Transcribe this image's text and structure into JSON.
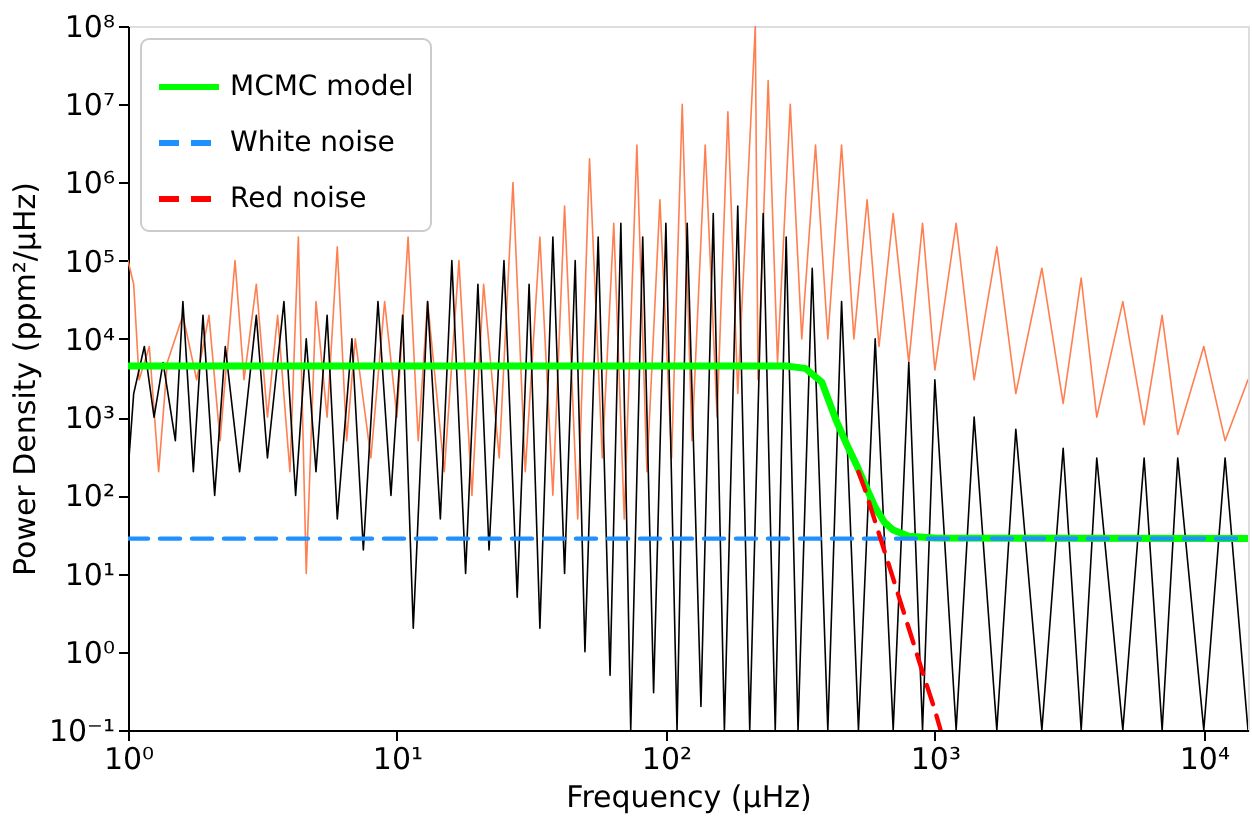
{
  "chart_data": {
    "type": "line",
    "xlabel": "Frequency (μHz)",
    "ylabel": "Power Density (ppm²/μHz)",
    "log": "xy",
    "grid": false,
    "legend": "top left",
    "xlim": [
      1,
      14600
    ],
    "ylim": [
      0.1,
      100000000
    ],
    "xticks": [
      {
        "value": 1,
        "label": "10⁰"
      },
      {
        "value": 10,
        "label": "10¹"
      },
      {
        "value": 100,
        "label": "10²"
      },
      {
        "value": 1000,
        "label": "10³"
      },
      {
        "value": 10000,
        "label": "10⁴"
      }
    ],
    "yticks": [
      {
        "value": 0.1,
        "label": "10⁻¹"
      },
      {
        "value": 1,
        "label": "10⁰"
      },
      {
        "value": 10,
        "label": "10¹"
      },
      {
        "value": 100,
        "label": "10²"
      },
      {
        "value": 1000,
        "label": "10³"
      },
      {
        "value": 10000,
        "label": "10⁴"
      },
      {
        "value": 100000,
        "label": "10⁵"
      },
      {
        "value": 1000000,
        "label": "10⁶"
      },
      {
        "value": 10000000,
        "label": "10⁷"
      },
      {
        "value": 100000000,
        "label": "10⁸"
      }
    ],
    "series": [
      {
        "color": "#ff7f50",
        "line_style": "solid",
        "x": [
          1,
          1.05,
          1.1,
          1.2,
          1.3,
          1.4,
          1.6,
          1.8,
          2,
          2.2,
          2.5,
          2.7,
          3,
          3.3,
          3.6,
          4,
          4.3,
          4.6,
          5,
          5.5,
          6,
          6.5,
          7,
          8,
          9,
          10,
          11,
          12,
          13,
          15,
          17,
          19,
          21,
          24,
          27,
          30,
          34,
          38,
          42,
          47,
          52,
          58,
          64,
          70,
          78,
          85,
          95,
          105,
          115,
          125,
          140,
          155,
          170,
          185,
          215,
          220,
          240,
          260,
          290,
          320,
          360,
          400,
          450,
          500,
          560,
          620,
          700,
          800,
          900,
          1000,
          1200,
          1400,
          1700,
          2000,
          2500,
          3000,
          3500,
          4000,
          5000,
          6000,
          7000,
          8000,
          10000,
          12000,
          14600
        ],
        "values": [
          100000,
          50000,
          3000,
          8000,
          200,
          5000,
          20000,
          3000,
          20000,
          500,
          100000,
          3000,
          50000,
          1000,
          20000,
          200,
          200000,
          10,
          30000,
          1000,
          150000,
          500,
          10000,
          300,
          30000,
          1000,
          200000,
          500,
          30000,
          200,
          100000,
          100,
          50000,
          300,
          1000000,
          200,
          200000,
          100,
          500000,
          50,
          2000000,
          300,
          300000,
          50,
          3000000,
          200,
          600000,
          300,
          10000000,
          500,
          3000000,
          1000,
          8000000,
          2000,
          100000000,
          3000,
          20000000,
          5000,
          10000000,
          10000,
          3000000,
          10000,
          3000000,
          10000,
          600000,
          8000,
          400000,
          5000,
          300000,
          4000,
          300000,
          3000,
          150000,
          2000,
          80000,
          1500,
          60000,
          1000,
          30000,
          800,
          20000,
          600,
          8000,
          500,
          3000
        ]
      },
      {
        "color": "#000000",
        "line_style": "solid",
        "x": [
          1,
          1.05,
          1.15,
          1.25,
          1.35,
          1.5,
          1.6,
          1.75,
          1.9,
          2.1,
          2.3,
          2.6,
          3,
          3.3,
          3.8,
          4.2,
          4.6,
          5,
          5.5,
          6,
          6.8,
          7.5,
          8.5,
          9.5,
          10.5,
          11.5,
          13,
          14.5,
          16,
          18,
          20,
          22,
          25,
          28,
          31,
          34,
          38,
          42,
          46,
          50,
          56,
          62,
          68,
          74,
          82,
          90,
          100,
          110,
          120,
          135,
          150,
          165,
          185,
          205,
          230,
          255,
          280,
          310,
          350,
          400,
          450,
          520,
          600,
          700,
          800,
          900,
          1000,
          1200,
          1400,
          1700,
          2000,
          2500,
          3000,
          3500,
          4000,
          5000,
          6000,
          7000,
          8000,
          10000,
          12000,
          14600
        ],
        "values": [
          200,
          2000,
          8000,
          1000,
          5000,
          500,
          30000,
          200,
          20000,
          100,
          8000,
          200,
          20000,
          300,
          30000,
          100,
          10000,
          200,
          20000,
          50,
          10000,
          20,
          30000,
          100,
          20000,
          2,
          30000,
          50,
          100000,
          10,
          50000,
          20,
          100000,
          5,
          50000,
          2,
          200000,
          10,
          100000,
          1,
          200000,
          0.5,
          300000,
          0.1,
          200000,
          0.3,
          300000,
          0.1,
          300000,
          0.2,
          400000,
          0.1,
          500000,
          0.1,
          400000,
          0.1,
          200000,
          0.1,
          80000,
          0.1,
          30000,
          0.1,
          10000,
          0.1,
          5000,
          0.1,
          3000,
          0.1,
          1000,
          0.1,
          700,
          0.1,
          400,
          0.1,
          300,
          0.1,
          300,
          0.1,
          300,
          0.1,
          300,
          0.1
        ]
      },
      {
        "name": "MCMC model",
        "color": "#00ff00",
        "line_style": "solid",
        "x": [
          1,
          280,
          330,
          380,
          430,
          470,
          510,
          554,
          600,
          650,
          700,
          800,
          1000,
          14600
        ],
        "values": [
          4500,
          4500,
          4200,
          2800,
          900,
          450,
          250,
          130,
          70,
          45,
          36,
          30,
          28.5,
          28
        ]
      },
      {
        "name": "White noise",
        "color": "#1e90ff",
        "line_style": "dashed",
        "x": [
          1,
          14600
        ],
        "values": [
          28,
          28
        ]
      },
      {
        "name": "Red noise",
        "color": "#ff0000",
        "line_style": "dashed",
        "x": [
          520,
          554,
          600,
          700,
          800,
          900,
          1000,
          1050
        ],
        "values": [
          200,
          110,
          46,
          8.6,
          2,
          0.55,
          0.18,
          0.1
        ]
      }
    ]
  }
}
